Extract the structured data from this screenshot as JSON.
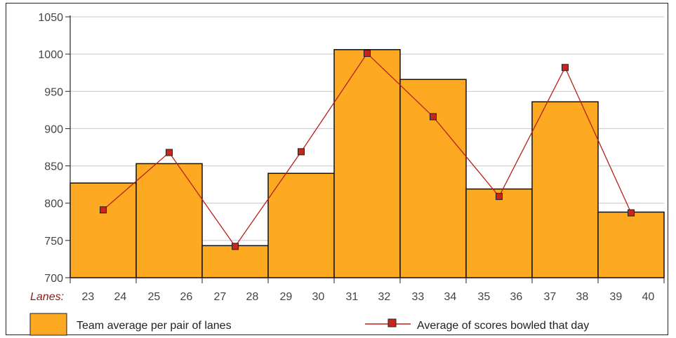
{
  "chart_data": {
    "type": "bar",
    "categories": [
      "23-24",
      "25-26",
      "27-28",
      "29-30",
      "31-32",
      "33-34",
      "35-36",
      "37-38",
      "39-40"
    ],
    "lane_labels": [
      "23",
      "24",
      "25",
      "26",
      "27",
      "28",
      "29",
      "30",
      "31",
      "32",
      "33",
      "34",
      "35",
      "36",
      "37",
      "38",
      "39",
      "40"
    ],
    "x_prefix_label": "Lanes:",
    "series": [
      {
        "name": "Team average per pair of lanes",
        "kind": "bar",
        "color": "#fdaa22",
        "values": [
          827,
          853,
          743,
          840,
          1006,
          966,
          819,
          936,
          788
        ]
      },
      {
        "name": "Average of scores bowled that day",
        "kind": "line",
        "color": "#b8201a",
        "values": [
          791,
          868,
          742,
          869,
          1001,
          916,
          809,
          982,
          787
        ]
      }
    ],
    "y_ticks": [
      700,
      750,
      800,
      850,
      900,
      950,
      1000,
      1050
    ],
    "ylim": [
      700,
      1050
    ],
    "grid": true,
    "legend_position": "bottom"
  }
}
